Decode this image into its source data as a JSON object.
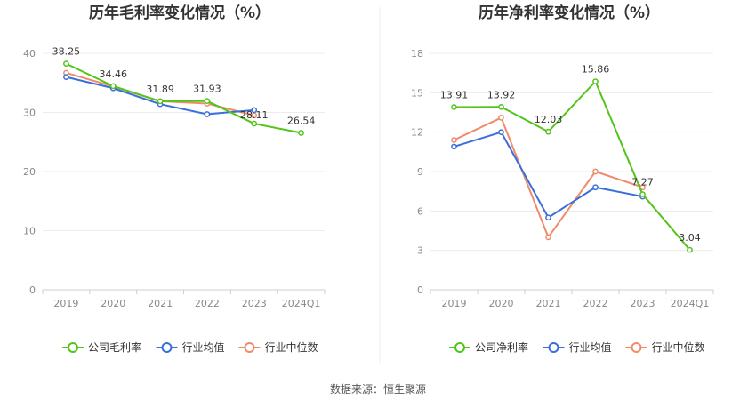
{
  "source": "数据来源：恒生聚源",
  "chart_data": [
    {
      "type": "line",
      "title": "历年毛利率变化情况（%）",
      "categories": [
        "2019",
        "2020",
        "2021",
        "2022",
        "2023",
        "2024Q1"
      ],
      "ylim": [
        0,
        40
      ],
      "yticks": [
        0,
        10,
        20,
        30,
        40
      ],
      "grid": true,
      "legend_position": "bottom",
      "series": [
        {
          "name": "公司毛利率",
          "color": "#52c41a",
          "values": [
            38.25,
            34.46,
            31.89,
            31.93,
            28.11,
            26.54
          ],
          "labels": [
            "38.25",
            "34.46",
            "31.89",
            "31.93",
            "28.11",
            "26.54"
          ]
        },
        {
          "name": "行业均值",
          "color": "#3a6fd8",
          "values": [
            36.0,
            34.1,
            31.4,
            29.7,
            30.4,
            null
          ]
        },
        {
          "name": "行业中位数",
          "color": "#f08a6a",
          "values": [
            36.7,
            34.4,
            31.9,
            31.5,
            29.5,
            null
          ]
        }
      ]
    },
    {
      "type": "line",
      "title": "历年净利率变化情况（%）",
      "categories": [
        "2019",
        "2020",
        "2021",
        "2022",
        "2023",
        "2024Q1"
      ],
      "ylim": [
        0,
        18
      ],
      "yticks": [
        0,
        3,
        6,
        9,
        12,
        15,
        18
      ],
      "grid": true,
      "legend_position": "bottom",
      "series": [
        {
          "name": "公司净利率",
          "color": "#52c41a",
          "values": [
            13.91,
            13.92,
            12.03,
            15.86,
            7.27,
            3.04
          ],
          "labels": [
            "13.91",
            "13.92",
            "12.03",
            "15.86",
            "7.27",
            "3.04"
          ]
        },
        {
          "name": "行业均值",
          "color": "#3a6fd8",
          "values": [
            10.9,
            12.0,
            5.5,
            7.8,
            7.1,
            null
          ]
        },
        {
          "name": "行业中位数",
          "color": "#f08a6a",
          "values": [
            11.4,
            13.1,
            4.0,
            9.0,
            7.8,
            null
          ]
        }
      ]
    }
  ]
}
